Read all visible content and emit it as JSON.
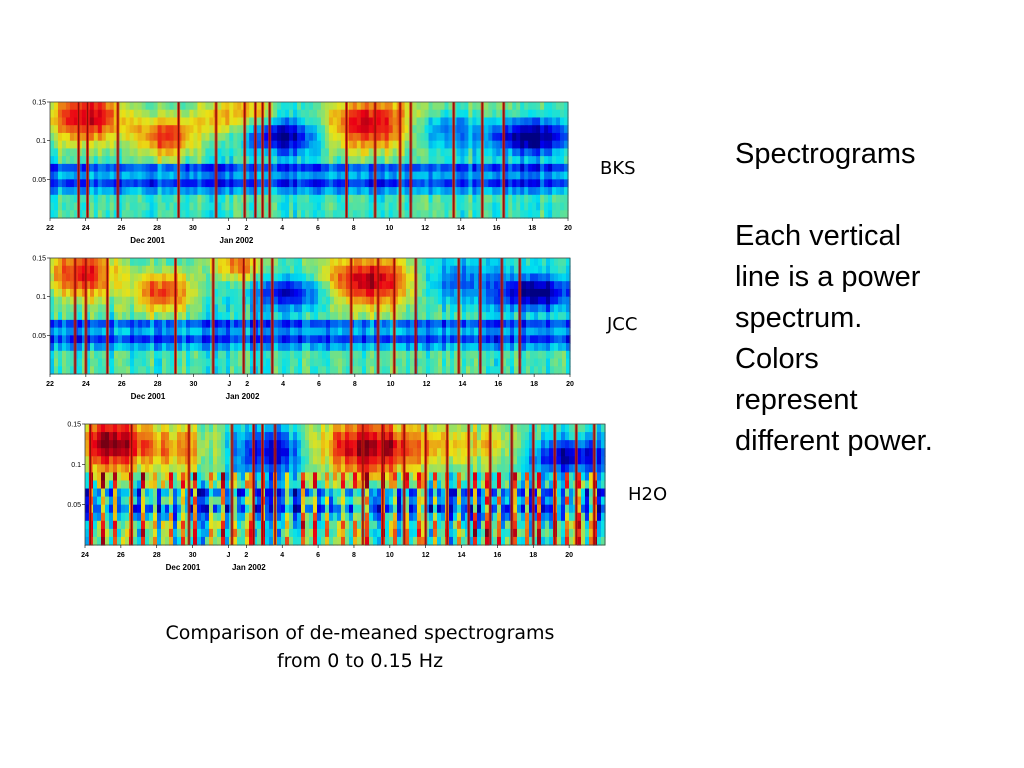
{
  "caption": {
    "line1": "Comparison of de-meaned spectrograms",
    "line2": "from 0 to 0.15 Hz"
  },
  "side_text": {
    "title": "Spectrograms",
    "body": [
      "Each vertical",
      "line is a power",
      "spectrum.",
      "Colors",
      "represent",
      "different power."
    ]
  },
  "colors": {
    "low": "#0a10c8",
    "high": "#e41a10",
    "mid": "#f6f020",
    "spike": "#8a1008"
  },
  "chart_data": [
    {
      "type": "heatmap",
      "station": "BKS",
      "ylim": [
        0,
        0.15
      ],
      "yticks": [
        {
          "value": 0.15,
          "label": "0.15"
        },
        {
          "value": 0.1,
          "label": "0.1"
        },
        {
          "value": 0.05,
          "label": "0.05"
        }
      ],
      "xlim": [
        22,
        51
      ],
      "xticks": [
        {
          "value": 22,
          "label": "22"
        },
        {
          "value": 24,
          "label": "24"
        },
        {
          "value": 26,
          "label": "26"
        },
        {
          "value": 28,
          "label": "28"
        },
        {
          "value": 30,
          "label": "30"
        },
        {
          "value": 32,
          "label": "J"
        },
        {
          "value": 33,
          "label": "2"
        },
        {
          "value": 35,
          "label": "4"
        },
        {
          "value": 37,
          "label": "6"
        },
        {
          "value": 39,
          "label": "8"
        },
        {
          "value": 41,
          "label": "10"
        },
        {
          "value": 43,
          "label": "12"
        },
        {
          "value": 45,
          "label": "14"
        },
        {
          "value": 47,
          "label": "16"
        },
        {
          "value": 49,
          "label": "18"
        },
        {
          "value": 51,
          "label": "20"
        }
      ],
      "month_labels": [
        {
          "value": 27.5,
          "label": "Dec 2001"
        },
        {
          "value": 32.5,
          "label": "Jan 2002"
        }
      ],
      "blobs": [
        {
          "x": 24.0,
          "y": 0.13,
          "sx": 1.6,
          "sy": 0.025,
          "a": 1.1
        },
        {
          "x": 28.5,
          "y": 0.105,
          "sx": 1.2,
          "sy": 0.02,
          "a": 0.9
        },
        {
          "x": 31.5,
          "y": 0.13,
          "sx": 1.0,
          "sy": 0.02,
          "a": 0.6
        },
        {
          "x": 33.5,
          "y": 0.14,
          "sx": 0.8,
          "sy": 0.015,
          "a": 0.5
        },
        {
          "x": 35.0,
          "y": 0.105,
          "sx": 1.4,
          "sy": 0.015,
          "a": -0.9
        },
        {
          "x": 40.0,
          "y": 0.12,
          "sx": 1.8,
          "sy": 0.025,
          "a": 1.1
        },
        {
          "x": 44.0,
          "y": 0.12,
          "sx": 1.5,
          "sy": 0.02,
          "a": -0.5
        },
        {
          "x": 49.0,
          "y": 0.105,
          "sx": 1.5,
          "sy": 0.015,
          "a": -1.0
        },
        {
          "x": 45.0,
          "y": 0.14,
          "sx": 3.0,
          "sy": 0.012,
          "a": 0.3
        }
      ],
      "spikes": [
        23.6,
        24.1,
        25.8,
        29.2,
        31.3,
        32.9,
        33.5,
        33.9,
        34.3,
        38.6,
        40.2,
        41.6,
        42.2,
        44.6,
        46.2,
        47.4
      ],
      "noise": 0.25
    },
    {
      "type": "heatmap",
      "station": "JCC",
      "ylim": [
        0,
        0.15
      ],
      "yticks": [
        {
          "value": 0.15,
          "label": "0.15"
        },
        {
          "value": 0.1,
          "label": "0.1"
        },
        {
          "value": 0.05,
          "label": "0.05"
        }
      ],
      "xlim": [
        22,
        51
      ],
      "xticks": [
        {
          "value": 22,
          "label": "22"
        },
        {
          "value": 24,
          "label": "24"
        },
        {
          "value": 26,
          "label": "26"
        },
        {
          "value": 28,
          "label": "28"
        },
        {
          "value": 30,
          "label": "30"
        },
        {
          "value": 32,
          "label": "J"
        },
        {
          "value": 33,
          "label": "2"
        },
        {
          "value": 35,
          "label": "4"
        },
        {
          "value": 37,
          "label": "6"
        },
        {
          "value": 39,
          "label": "8"
        },
        {
          "value": 41,
          "label": "10"
        },
        {
          "value": 43,
          "label": "12"
        },
        {
          "value": 45,
          "label": "14"
        },
        {
          "value": 47,
          "label": "16"
        },
        {
          "value": 49,
          "label": "18"
        },
        {
          "value": 51,
          "label": "20"
        }
      ],
      "month_labels": [
        {
          "value": 27.5,
          "label": "Dec 2001"
        },
        {
          "value": 32.8,
          "label": "Jan 2002"
        }
      ],
      "blobs": [
        {
          "x": 23.8,
          "y": 0.13,
          "sx": 1.4,
          "sy": 0.025,
          "a": 1.0
        },
        {
          "x": 28.3,
          "y": 0.105,
          "sx": 1.2,
          "sy": 0.02,
          "a": 0.9
        },
        {
          "x": 32.5,
          "y": 0.14,
          "sx": 1.2,
          "sy": 0.015,
          "a": 0.7
        },
        {
          "x": 35.5,
          "y": 0.105,
          "sx": 1.5,
          "sy": 0.015,
          "a": -0.8
        },
        {
          "x": 39.8,
          "y": 0.12,
          "sx": 2.0,
          "sy": 0.025,
          "a": 1.1
        },
        {
          "x": 44.5,
          "y": 0.12,
          "sx": 1.5,
          "sy": 0.02,
          "a": -0.5
        },
        {
          "x": 49.0,
          "y": 0.105,
          "sx": 1.5,
          "sy": 0.015,
          "a": -1.0
        }
      ],
      "spikes": [
        23.4,
        24.0,
        25.2,
        29.0,
        31.1,
        32.8,
        33.4,
        33.8,
        34.4,
        38.8,
        40.3,
        41.2,
        42.4,
        44.8,
        46.0,
        47.2,
        48.2
      ],
      "noise": 0.25
    },
    {
      "type": "heatmap",
      "station": "H2O",
      "ylim": [
        0,
        0.15
      ],
      "yticks": [
        {
          "value": 0.15,
          "label": "0.15"
        },
        {
          "value": 0.1,
          "label": "0.1"
        },
        {
          "value": 0.05,
          "label": "0.05"
        }
      ],
      "xlim": [
        24,
        53
      ],
      "xticks": [
        {
          "value": 24,
          "label": "24"
        },
        {
          "value": 26,
          "label": "26"
        },
        {
          "value": 28,
          "label": "28"
        },
        {
          "value": 30,
          "label": "30"
        },
        {
          "value": 32,
          "label": "J"
        },
        {
          "value": 33,
          "label": "2"
        },
        {
          "value": 35,
          "label": "4"
        },
        {
          "value": 37,
          "label": "6"
        },
        {
          "value": 39,
          "label": "8"
        },
        {
          "value": 41,
          "label": "10"
        },
        {
          "value": 43,
          "label": "12"
        },
        {
          "value": 45,
          "label": "14"
        },
        {
          "value": 47,
          "label": "16"
        },
        {
          "value": 49,
          "label": "18"
        },
        {
          "value": 51,
          "label": "20"
        }
      ],
      "month_labels": [
        {
          "value": 29.5,
          "label": "Dec 2001"
        },
        {
          "value": 33.2,
          "label": "Jan 2002"
        }
      ],
      "blobs": [
        {
          "x": 25.5,
          "y": 0.125,
          "sx": 1.6,
          "sy": 0.025,
          "a": 1.2
        },
        {
          "x": 29.5,
          "y": 0.12,
          "sx": 1.4,
          "sy": 0.025,
          "a": 0.6
        },
        {
          "x": 34.5,
          "y": 0.115,
          "sx": 1.6,
          "sy": 0.02,
          "a": -0.8
        },
        {
          "x": 40.0,
          "y": 0.12,
          "sx": 2.5,
          "sy": 0.025,
          "a": 1.2
        },
        {
          "x": 46.0,
          "y": 0.125,
          "sx": 2.0,
          "sy": 0.02,
          "a": 0.4
        },
        {
          "x": 51.0,
          "y": 0.11,
          "sx": 1.5,
          "sy": 0.015,
          "a": -0.9
        }
      ],
      "spikes": [
        24.3,
        26.6,
        29.8,
        32.2,
        33.4,
        33.9,
        34.6,
        39.5,
        40.6,
        41.8,
        43.0,
        44.2,
        45.4,
        46.6,
        47.8,
        49.0,
        50.2,
        51.4,
        52.4
      ],
      "noise": 0.45,
      "dense_band": true
    }
  ]
}
